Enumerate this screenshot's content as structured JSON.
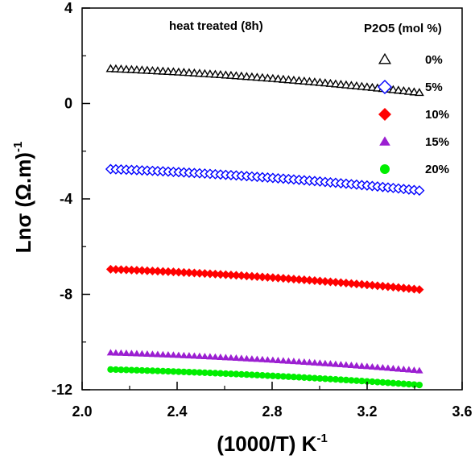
{
  "chart_data": {
    "type": "scatter",
    "title": "",
    "annotation": "heat treated (8h)",
    "xlabel_main": "(1000/T)  K",
    "xlabel_sup": "-1",
    "ylabel_main": "Lnσ (Ω.m)",
    "ylabel_sup": "-1",
    "xlim": [
      2.0,
      3.6
    ],
    "ylim": [
      -12,
      4
    ],
    "x_ticks": [
      "2.0",
      "2.4",
      "2.8",
      "3.2",
      "3.6"
    ],
    "y_ticks": [
      "4",
      "0",
      "-4",
      "-8",
      "-12"
    ],
    "grid": false,
    "legend_title": "P2O5 (mol %)",
    "legend_position": "top-right",
    "x_start": 2.12,
    "x_end": 3.42,
    "series": [
      {
        "name": "0%",
        "marker": "triangle-open",
        "color": "#000000",
        "y_start": 1.45,
        "y_end": 0.45
      },
      {
        "name": "5%",
        "marker": "diamond-open",
        "color": "#0000ff",
        "y_start": -2.75,
        "y_end": -3.65
      },
      {
        "name": "10%",
        "marker": "diamond",
        "color": "#ff0000",
        "y_start": -6.95,
        "y_end": -7.8
      },
      {
        "name": "15%",
        "marker": "triangle",
        "color": "#9b1fd1",
        "y_start": -10.45,
        "y_end": -11.2
      },
      {
        "name": "20%",
        "marker": "circle",
        "color": "#00ee00",
        "y_start": -11.15,
        "y_end": -11.8
      }
    ]
  }
}
